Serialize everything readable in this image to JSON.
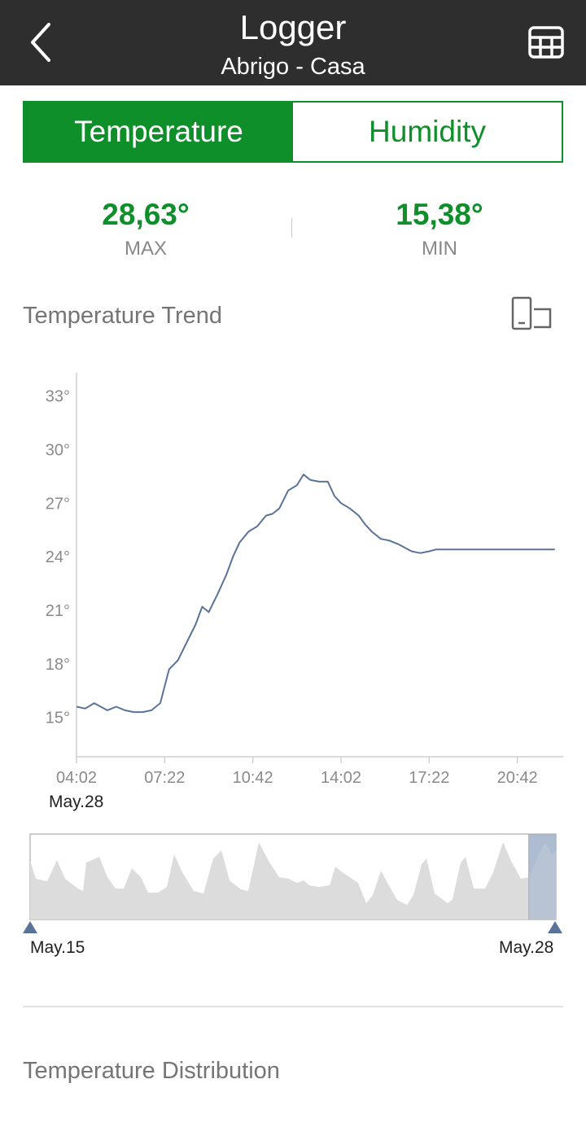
{
  "header": {
    "title": "Logger",
    "subtitle": "Abrigo - Casa",
    "back_icon": "chevron-left-icon",
    "table_icon": "table-grid-icon"
  },
  "tabs": [
    {
      "label": "Temperature",
      "active": true
    },
    {
      "label": "Humidity",
      "active": false
    }
  ],
  "stats": {
    "max": {
      "value": "28,63°",
      "label": "MAX"
    },
    "min": {
      "value": "15,38°",
      "label": "MIN"
    }
  },
  "trend": {
    "title": "Temperature Trend",
    "rotate_icon": "rotate-screen-icon",
    "date_label": "May.28"
  },
  "navigator": {
    "start_label": "May.15",
    "end_label": "May.28"
  },
  "distribution": {
    "title": "Temperature Distribution"
  },
  "colors": {
    "header_bg": "#2e2e2e",
    "accent_green": "#0f8f2a",
    "line": "#5b7398",
    "navigator_fill": "#dcdcdc",
    "navigator_selection": "#9fb0c8"
  },
  "chart_data": {
    "type": "line",
    "title": "",
    "xlabel": "",
    "ylabel": "",
    "x_ticks": [
      "04:02",
      "07:22",
      "10:42",
      "14:02",
      "17:22",
      "20:42"
    ],
    "y_ticks": [
      "33°",
      "30°",
      "27°",
      "24°",
      "21°",
      "18°",
      "15°"
    ],
    "y_tick_values": [
      33,
      30,
      27,
      24,
      21,
      18,
      15
    ],
    "ylim": [
      12.8,
      34.3
    ],
    "xlim_minutes": [
      242,
      1346
    ],
    "grid": false,
    "series": [
      {
        "x_minutes": [
          242,
          262,
          282,
          297,
          312,
          332,
          352,
          372,
          392,
          412,
          432,
          452,
          472,
          492,
          512,
          527,
          542,
          562,
          582,
          597,
          612,
          632,
          652,
          672,
          687,
          702,
          722,
          742,
          757,
          772,
          792,
          812,
          827,
          842,
          862,
          882,
          897,
          912,
          932,
          952,
          972,
          987,
          1002,
          1022,
          1042,
          1057,
          1072,
          1092,
          1112,
          1132,
          1152,
          1172,
          1192,
          1212,
          1232,
          1252,
          1272,
          1292,
          1312,
          1327,
          1242
        ],
        "y": [
          15.6,
          15.5,
          15.8,
          15.6,
          15.4,
          15.6,
          15.4,
          15.3,
          15.3,
          15.4,
          15.8,
          17.7,
          18.2,
          19.2,
          20.2,
          21.2,
          20.9,
          21.9,
          23.0,
          24.0,
          24.8,
          25.4,
          25.7,
          26.3,
          26.4,
          26.7,
          27.7,
          28.0,
          28.6,
          28.3,
          28.2,
          28.2,
          27.4,
          27.0,
          26.7,
          26.3,
          25.8,
          25.4,
          25.0,
          24.9,
          24.7,
          24.5,
          24.3,
          24.2,
          24.3,
          24.4,
          24.4,
          24.4,
          24.4,
          24.4,
          24.4,
          24.4,
          24.4,
          24.4,
          24.4,
          24.4,
          24.4,
          24.4,
          24.4,
          24.4,
          24.4
        ],
        "note_series": "Approximate readings along the plotted curve"
      }
    ]
  }
}
